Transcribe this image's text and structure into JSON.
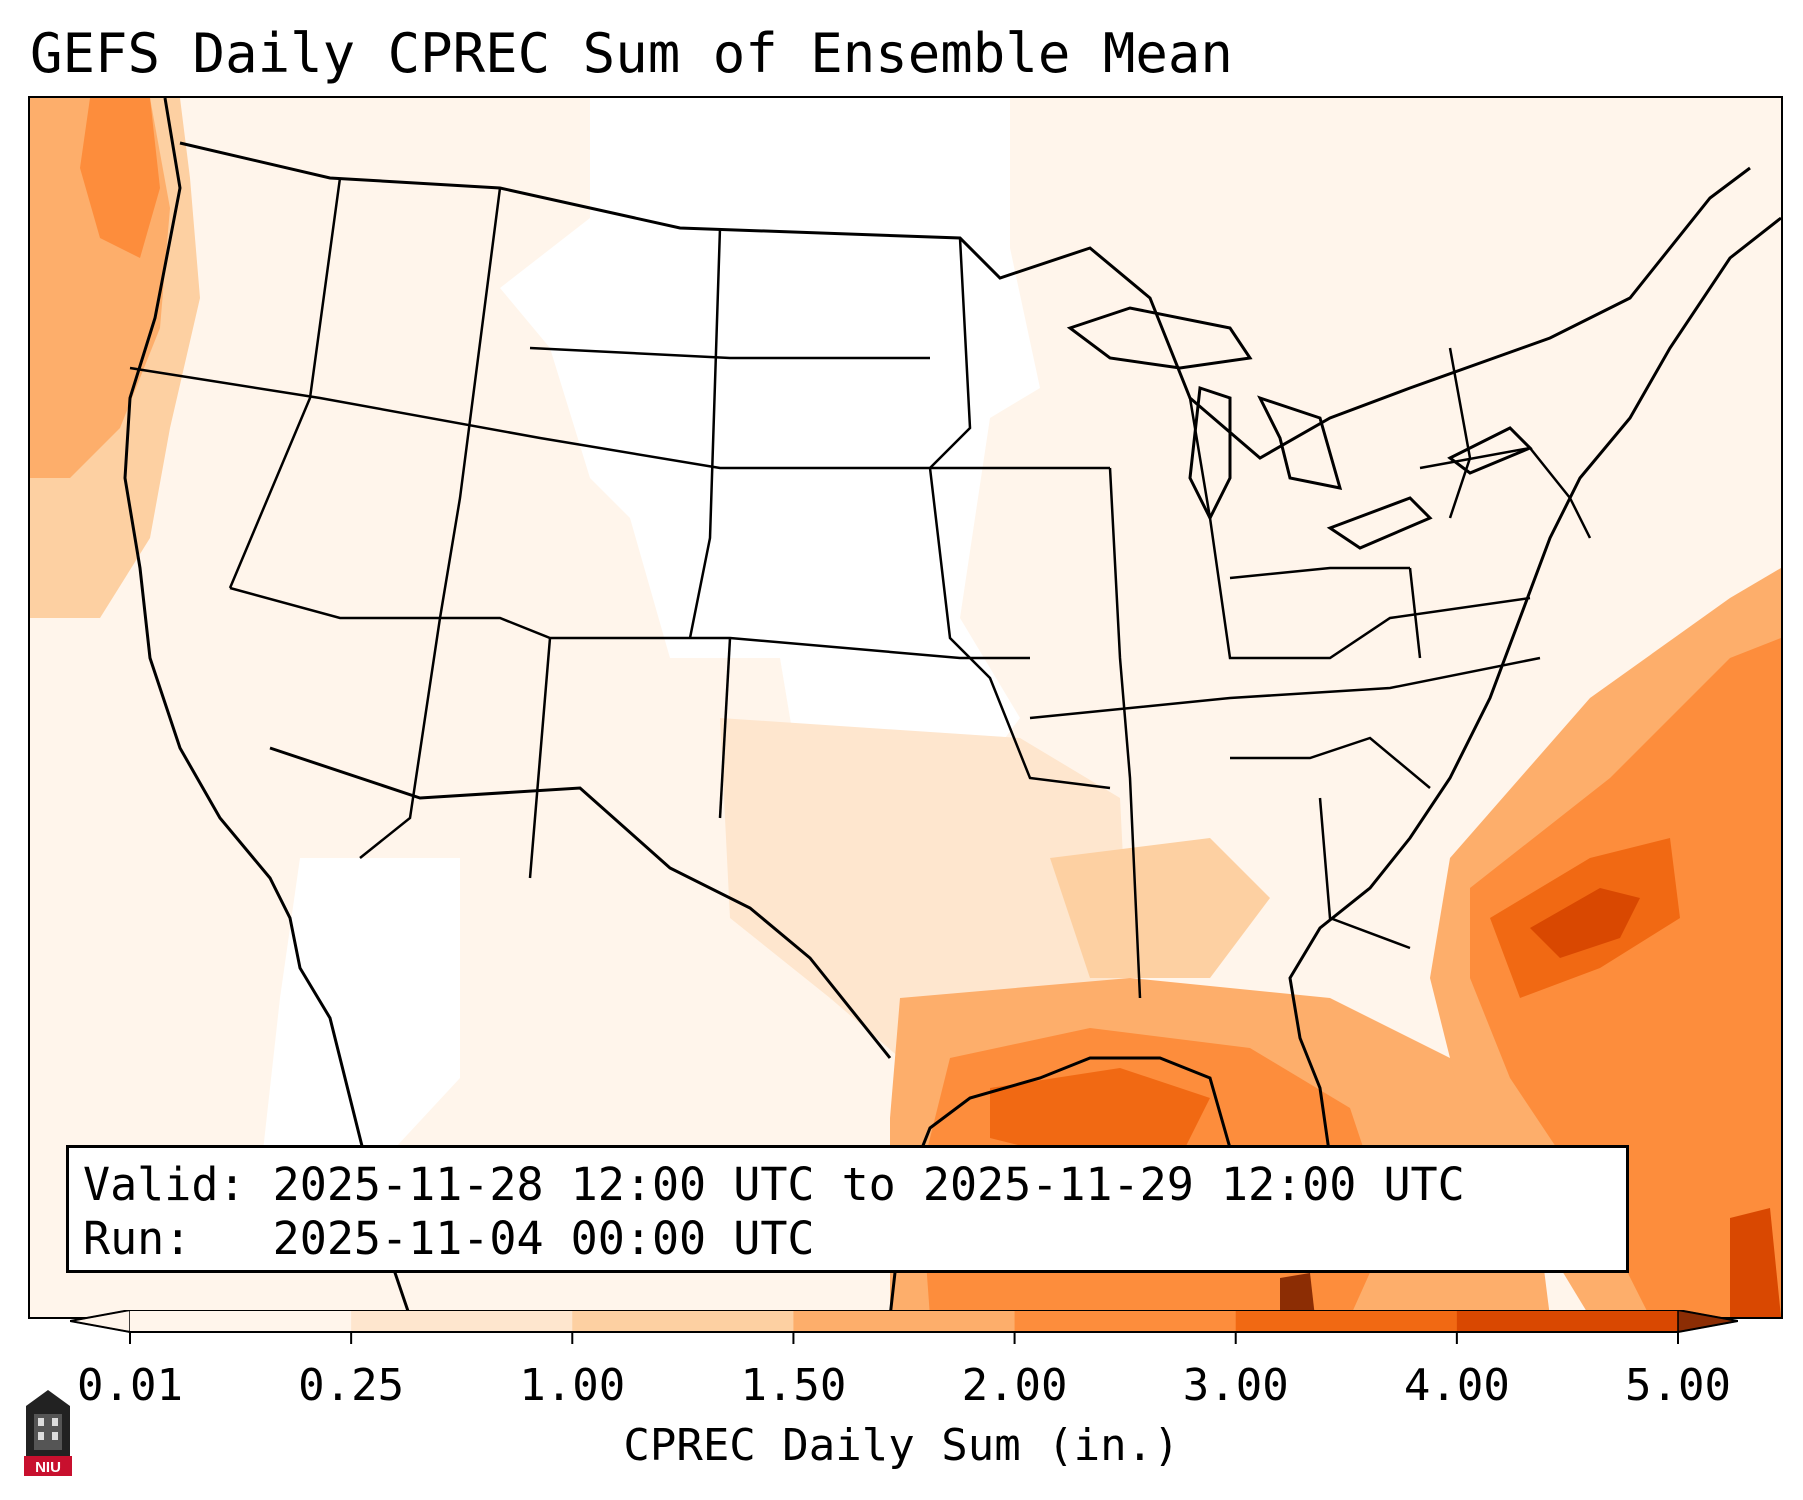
{
  "title": "GEFS Daily CPREC Sum of Ensemble Mean",
  "info": {
    "valid_label": "Valid:",
    "valid_value": "2025-11-28 12:00 UTC to 2025-11-29 12:00 UTC",
    "run_label": "Run:",
    "run_value": "2025-11-04 00:00 UTC"
  },
  "colorbar": {
    "label": "CPREC Daily Sum (in.)",
    "ticks": [
      "0.01",
      "0.25",
      "1.00",
      "1.50",
      "2.00",
      "3.00",
      "4.00",
      "5.00"
    ],
    "colors": [
      "#fff5eb",
      "#fee6ce",
      "#fdd0a2",
      "#fdae6b",
      "#fd8d3c",
      "#f16913",
      "#d94801",
      "#8c2d04"
    ],
    "extend": "both"
  },
  "logo": {
    "text": "NIU",
    "color": "#c8102e"
  }
}
